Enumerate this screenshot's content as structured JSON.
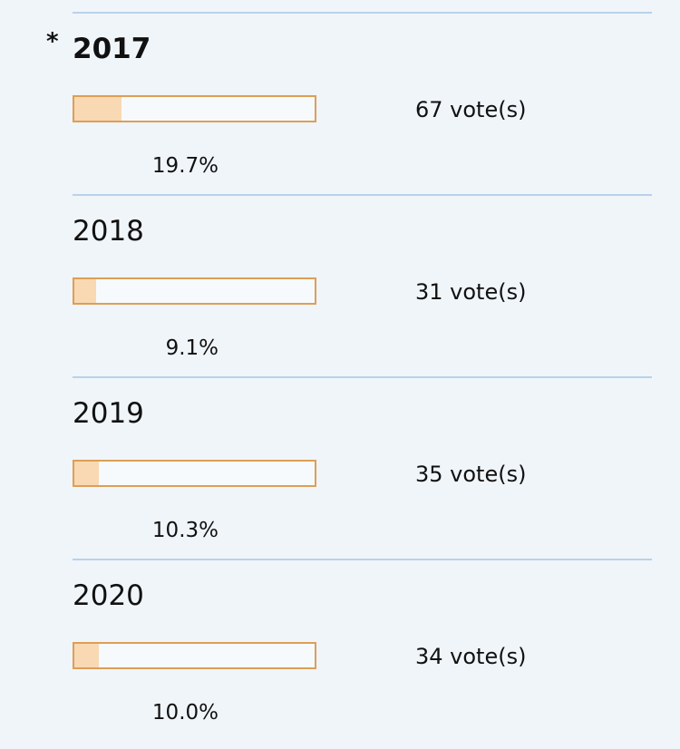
{
  "poll": {
    "selected_marker": "*",
    "options": [
      {
        "label": "2017",
        "votes": "67 vote(s)",
        "percent": "19.7%",
        "fill_percent": 19.7,
        "selected": true
      },
      {
        "label": "2018",
        "votes": "31 vote(s)",
        "percent": "9.1%",
        "fill_percent": 9.1,
        "selected": false
      },
      {
        "label": "2019",
        "votes": "35 vote(s)",
        "percent": "10.3%",
        "fill_percent": 10.3,
        "selected": false
      },
      {
        "label": "2020",
        "votes": "34 vote(s)",
        "percent": "10.0%",
        "fill_percent": 10.0,
        "selected": false
      }
    ]
  },
  "colors": {
    "background": "#f0f5fa",
    "divider": "#b8d2ea",
    "bar_border": "#dd9f55",
    "bar_fill": "#f8d9b4",
    "bar_track": "#f7fafd",
    "text": "#111111"
  }
}
